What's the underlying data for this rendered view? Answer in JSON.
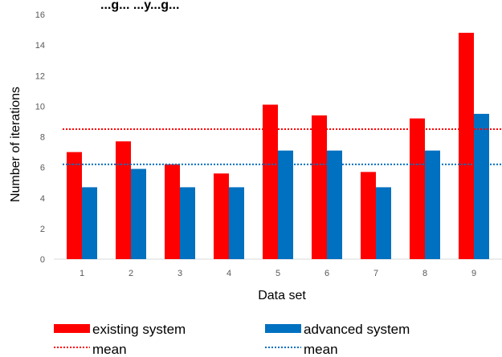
{
  "chart_data": {
    "type": "bar",
    "title": "...g... ...y...g...",
    "xlabel": "Data set",
    "ylabel": "Number of iterations",
    "categories": [
      "1",
      "2",
      "3",
      "4",
      "5",
      "6",
      "7",
      "8",
      "9"
    ],
    "yticks": [
      "0",
      "2",
      "4",
      "6",
      "8",
      "10",
      "12",
      "14",
      "16"
    ],
    "ylim": [
      0,
      16
    ],
    "grid": false,
    "legend_position": "bottom",
    "series": [
      {
        "name": "existing system",
        "color": "#ff0000",
        "values": [
          7.0,
          7.7,
          6.2,
          5.6,
          10.1,
          9.4,
          5.7,
          9.2,
          14.8
        ]
      },
      {
        "name": "advanced system",
        "color": "#0070c0",
        "values": [
          4.7,
          5.9,
          4.7,
          4.7,
          7.1,
          7.1,
          4.7,
          7.1,
          9.5
        ]
      }
    ],
    "reference_lines": [
      {
        "name": "mean",
        "series": "existing system",
        "value": 8.5,
        "color": "#ff0000",
        "style": "dotted"
      },
      {
        "name": "mean",
        "series": "advanced system",
        "value": 6.2,
        "color": "#0070c0",
        "style": "dotted"
      }
    ]
  }
}
